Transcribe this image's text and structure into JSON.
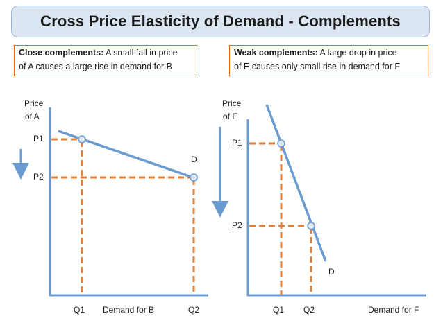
{
  "title": "Cross Price Elasticity of Demand - Complements",
  "left_note": {
    "label": "Close complements:",
    "line1": "A small fall in price",
    "line2": "of A causes a large rise in demand for B"
  },
  "right_note": {
    "label": "Weak complements:",
    "line1": "A large drop in price",
    "line2": "of E causes only small rise in demand for F"
  },
  "left_chart": {
    "y_label_1": "Price",
    "y_label_2": "of A",
    "p1": "P1",
    "p2": "P2",
    "q1": "Q1",
    "q2": "Q2",
    "x_label": "Demand for B",
    "curve_label": "D"
  },
  "right_chart": {
    "y_label_1": "Price",
    "y_label_2": "of E",
    "p1": "P1",
    "p2": "P2",
    "q1": "Q1",
    "q2": "Q2",
    "x_label": "Demand for F",
    "curve_label": "D"
  },
  "colors": {
    "axis": "#6a9bd0",
    "curve": "#6a9bd0",
    "dashed": "#e0813a",
    "arrow": "#6a9bd0"
  }
}
